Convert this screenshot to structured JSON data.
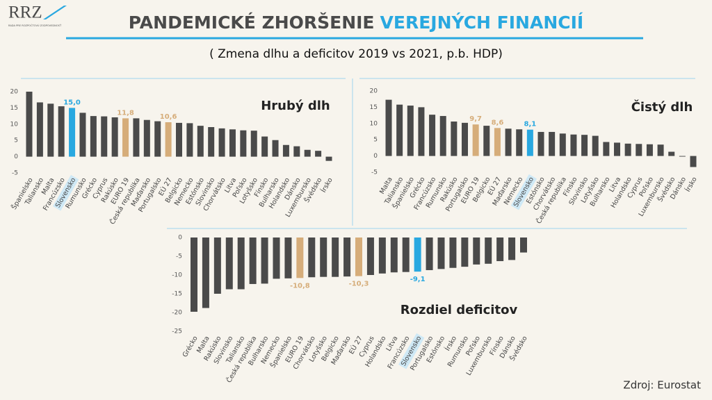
{
  "header": {
    "logo": "RRZ",
    "logo_subtitle": "RADA PRE ROZPOČTOVÚ ZODPOVEDNOSŤ",
    "title_dark": "PANDEMICKÉ ZHORŠENIE",
    "title_blue": "VEREJNÝCH FINANCIÍ",
    "subtitle": "( Zmena dlhu a deficitov 2019 vs 2021, p.b. HDP)"
  },
  "source": "Zdroj: Eurostat",
  "chart_data": [
    {
      "type": "bar",
      "title": "Hrubý dlh",
      "categories": [
        "Španielsko",
        "Taliansko",
        "Malta",
        "Francúzsko",
        "Slovensko",
        "Rumunsko",
        "Grécko",
        "Cyprus",
        "Rakúsko",
        "EURO 19",
        "Česká republika",
        "Maďarsko",
        "Portugalsko",
        "EÚ 27",
        "Belgicko",
        "Nemecko",
        "Estónsko",
        "Slovinsko",
        "Chorvátsko",
        "Litva",
        "Poľsko",
        "Lotyšsko",
        "Fínsko",
        "Bulharsko",
        "Holandsko",
        "Dánsko",
        "Luxembursko",
        "Švédsko",
        "Írsko"
      ],
      "values": [
        20.0,
        16.7,
        16.3,
        15.5,
        15.0,
        13.5,
        12.5,
        12.4,
        12.1,
        11.8,
        11.8,
        11.3,
        10.9,
        10.6,
        10.4,
        10.3,
        9.5,
        9.1,
        8.7,
        8.4,
        8.1,
        8.0,
        6.2,
        5.1,
        3.6,
        3.2,
        2.1,
        1.8,
        -1.3
      ],
      "value_labels": [
        null,
        null,
        null,
        null,
        "15,0",
        null,
        null,
        null,
        null,
        "11,8",
        null,
        null,
        null,
        "10,6",
        null,
        null,
        null,
        null,
        null,
        null,
        null,
        null,
        null,
        null,
        null,
        null,
        null,
        null,
        null
      ],
      "colors": [
        "#4a4a4a",
        "#4a4a4a",
        "#4a4a4a",
        "#4a4a4a",
        "#29a8e0",
        "#4a4a4a",
        "#4a4a4a",
        "#4a4a4a",
        "#4a4a4a",
        "#d6ad7a",
        "#4a4a4a",
        "#4a4a4a",
        "#4a4a4a",
        "#d6ad7a",
        "#4a4a4a",
        "#4a4a4a",
        "#4a4a4a",
        "#4a4a4a",
        "#4a4a4a",
        "#4a4a4a",
        "#4a4a4a",
        "#4a4a4a",
        "#4a4a4a",
        "#4a4a4a",
        "#4a4a4a",
        "#4a4a4a",
        "#4a4a4a",
        "#4a4a4a",
        "#4a4a4a"
      ],
      "highlighted_category": 4,
      "ylim": [
        -5,
        20
      ],
      "yticks": [
        -5,
        0,
        5,
        10,
        15,
        20
      ]
    },
    {
      "type": "bar",
      "title": "Čistý dlh",
      "categories": [
        "Malta",
        "Taliansko",
        "Španielsko",
        "Grécko",
        "Francúzsko",
        "Rumunsko",
        "Rakúsko",
        "Portugalsko",
        "EURO 19",
        "Belgicko",
        "EÚ 27",
        "Maďarsko",
        "Nemecko",
        "Slovensko",
        "Estónsko",
        "Chorvátsko",
        "Česká republika",
        "Fínsko",
        "Slovinsko",
        "Lotyšsko",
        "Bulharsko",
        "Litva",
        "Holandsko",
        "Cyprus",
        "Poľsko",
        "Luxembursko",
        "Švédsko",
        "Dánsko",
        "Írsko"
      ],
      "values": [
        17.3,
        15.8,
        15.5,
        15.0,
        12.7,
        12.3,
        10.6,
        10.2,
        9.7,
        9.3,
        8.6,
        8.4,
        8.2,
        8.1,
        7.4,
        7.4,
        6.9,
        6.6,
        6.5,
        6.2,
        4.3,
        4.1,
        3.8,
        3.7,
        3.6,
        3.5,
        1.3,
        -0.2,
        -3.4
      ],
      "value_labels": [
        null,
        null,
        null,
        null,
        null,
        null,
        null,
        null,
        "9,7",
        null,
        "8,6",
        null,
        null,
        "8,1",
        null,
        null,
        null,
        null,
        null,
        null,
        null,
        null,
        null,
        null,
        null,
        null,
        null,
        null,
        null
      ],
      "colors": [
        "#4a4a4a",
        "#4a4a4a",
        "#4a4a4a",
        "#4a4a4a",
        "#4a4a4a",
        "#4a4a4a",
        "#4a4a4a",
        "#4a4a4a",
        "#d6ad7a",
        "#4a4a4a",
        "#d6ad7a",
        "#4a4a4a",
        "#4a4a4a",
        "#29a8e0",
        "#4a4a4a",
        "#4a4a4a",
        "#4a4a4a",
        "#4a4a4a",
        "#4a4a4a",
        "#4a4a4a",
        "#4a4a4a",
        "#4a4a4a",
        "#4a4a4a",
        "#4a4a4a",
        "#4a4a4a",
        "#4a4a4a",
        "#4a4a4a",
        "#4a4a4a",
        "#4a4a4a"
      ],
      "highlighted_category": 13,
      "ylim": [
        -5,
        20
      ],
      "yticks": [
        -5,
        0,
        5,
        10,
        15,
        20
      ]
    },
    {
      "type": "bar",
      "title": "Rozdiel deficitov",
      "categories": [
        "Grécko",
        "Malta",
        "Rakúsko",
        "Slovinsko",
        "Taliansko",
        "Česká republika",
        "Bulharsko",
        "Nemecko",
        "Španielsko",
        "EURO 19",
        "Chorvátsko",
        "Lotyšsko",
        "Belgicko",
        "Maďarsko",
        "EÚ 27",
        "Cyprus",
        "Holandsko",
        "Litva",
        "Francúzsko",
        "Slovensko",
        "Portugalsko",
        "Estónsko",
        "Írsko",
        "Rumunsko",
        "Poľsko",
        "Luxembursko",
        "Fínsko",
        "Dánsko",
        "Švédsko"
      ],
      "values": [
        -19.8,
        -18.8,
        -15.0,
        -13.8,
        -13.8,
        -12.4,
        -12.3,
        -11.0,
        -10.9,
        -10.8,
        -10.6,
        -10.5,
        -10.5,
        -10.4,
        -10.3,
        -10.0,
        -9.6,
        -9.3,
        -9.2,
        -9.1,
        -8.7,
        -8.4,
        -8.1,
        -7.8,
        -7.2,
        -7.0,
        -6.3,
        -6.0,
        -4.0
      ],
      "value_labels": [
        null,
        null,
        null,
        null,
        null,
        null,
        null,
        null,
        null,
        "-10,8",
        null,
        null,
        null,
        null,
        "-10,3",
        null,
        null,
        null,
        null,
        "-9,1",
        null,
        null,
        null,
        null,
        null,
        null,
        null,
        null,
        null
      ],
      "colors": [
        "#4a4a4a",
        "#4a4a4a",
        "#4a4a4a",
        "#4a4a4a",
        "#4a4a4a",
        "#4a4a4a",
        "#4a4a4a",
        "#4a4a4a",
        "#4a4a4a",
        "#d6ad7a",
        "#4a4a4a",
        "#4a4a4a",
        "#4a4a4a",
        "#4a4a4a",
        "#d6ad7a",
        "#4a4a4a",
        "#4a4a4a",
        "#4a4a4a",
        "#4a4a4a",
        "#29a8e0",
        "#4a4a4a",
        "#4a4a4a",
        "#4a4a4a",
        "#4a4a4a",
        "#4a4a4a",
        "#4a4a4a",
        "#4a4a4a",
        "#4a4a4a",
        "#4a4a4a"
      ],
      "highlighted_category": 19,
      "ylim": [
        -25,
        0
      ],
      "yticks": [
        -25,
        -20,
        -15,
        -10,
        -5,
        0
      ]
    }
  ]
}
